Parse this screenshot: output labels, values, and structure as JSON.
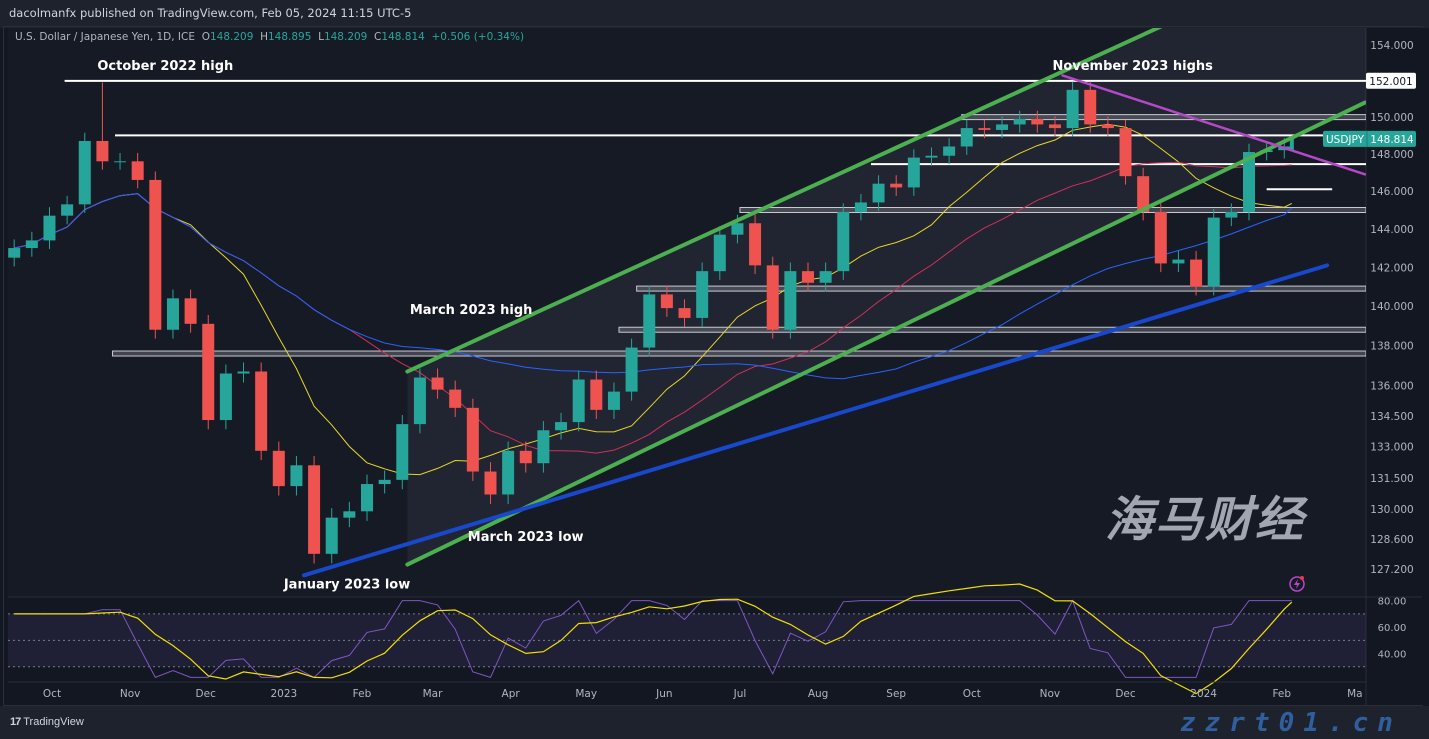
{
  "header": {
    "published": "dacolmanfx published on TradingView.com, Feb 05, 2024 11:15 UTC-5",
    "symbol_desc": "U.S. Dollar / Japanese Yen, 1D, ICE",
    "o_label": "O",
    "o": "148.209",
    "h_label": "H",
    "h": "148.895",
    "l_label": "L",
    "l": "148.209",
    "c_label": "C",
    "c": "148.814",
    "change": "+0.506 (+0.34%)"
  },
  "footer": {
    "logo_text": "TradingView",
    "logo_mark": "17"
  },
  "watermark": {
    "cn": "海马财经",
    "site": "zzrt01.cn"
  },
  "colors": {
    "up": "#26a69a",
    "down": "#ef5350",
    "channel": "#4caf50",
    "support": "#1848cc",
    "resistance": "#b548c6",
    "ma_fast": "#e8d62a",
    "ma_mid": "#d0305a",
    "ma_slow": "#2962ff",
    "rsi": "#7e57c2",
    "rsi_ma": "#f2e000",
    "background": "#131722"
  },
  "chart_data": {
    "type": "candlestick",
    "symbol": "USDJPY",
    "last_price": "148.814",
    "last_price_color": "#26a69a",
    "y_scale": "log",
    "ylim": [
      126.5,
      155.5
    ],
    "y_ticks": [
      "154.000",
      "152.001",
      "150.000",
      "148.000",
      "146.000",
      "144.000",
      "142.000",
      "140.000",
      "138.000",
      "136.000",
      "134.500",
      "133.000",
      "131.500",
      "130.000",
      "128.600",
      "127.200"
    ],
    "x_ticks": [
      {
        "label": "Oct",
        "date": "2022-10-01"
      },
      {
        "label": "Nov",
        "date": "2022-11-01"
      },
      {
        "label": "Dec",
        "date": "2022-12-01"
      },
      {
        "label": "2023",
        "date": "2023-01-01"
      },
      {
        "label": "Feb",
        "date": "2023-02-01"
      },
      {
        "label": "Mar",
        "date": "2023-03-01"
      },
      {
        "label": "Apr",
        "date": "2023-04-01"
      },
      {
        "label": "May",
        "date": "2023-05-01"
      },
      {
        "label": "Jun",
        "date": "2023-06-01"
      },
      {
        "label": "Jul",
        "date": "2023-07-01"
      },
      {
        "label": "Aug",
        "date": "2023-08-01"
      },
      {
        "label": "Sep",
        "date": "2023-09-01"
      },
      {
        "label": "Oct",
        "date": "2023-10-01"
      },
      {
        "label": "Nov",
        "date": "2023-11-01"
      },
      {
        "label": "Dec",
        "date": "2023-12-01"
      },
      {
        "label": "2024",
        "date": "2024-01-01"
      },
      {
        "label": "Feb",
        "date": "2024-02-01"
      },
      {
        "label": "Ma",
        "date": "2024-03-01"
      }
    ],
    "x": [
      "2022-09-16",
      "2022-09-23",
      "2022-09-30",
      "2022-10-07",
      "2022-10-14",
      "2022-10-21",
      "2022-10-28",
      "2022-11-04",
      "2022-11-11",
      "2022-11-18",
      "2022-11-25",
      "2022-12-02",
      "2022-12-09",
      "2022-12-16",
      "2022-12-23",
      "2022-12-30",
      "2023-01-06",
      "2023-01-13",
      "2023-01-20",
      "2023-01-27",
      "2023-02-03",
      "2023-02-10",
      "2023-02-17",
      "2023-02-24",
      "2023-03-03",
      "2023-03-10",
      "2023-03-17",
      "2023-03-24",
      "2023-03-31",
      "2023-04-07",
      "2023-04-14",
      "2023-04-21",
      "2023-04-28",
      "2023-05-05",
      "2023-05-12",
      "2023-05-19",
      "2023-05-26",
      "2023-06-02",
      "2023-06-09",
      "2023-06-16",
      "2023-06-23",
      "2023-06-30",
      "2023-07-07",
      "2023-07-14",
      "2023-07-21",
      "2023-07-28",
      "2023-08-04",
      "2023-08-11",
      "2023-08-18",
      "2023-08-25",
      "2023-09-01",
      "2023-09-08",
      "2023-09-15",
      "2023-09-22",
      "2023-09-29",
      "2023-10-06",
      "2023-10-13",
      "2023-10-20",
      "2023-10-27",
      "2023-11-03",
      "2023-11-10",
      "2023-11-17",
      "2023-11-24",
      "2023-12-01",
      "2023-12-08",
      "2023-12-15",
      "2023-12-22",
      "2023-12-29",
      "2024-01-05",
      "2024-01-12",
      "2024-01-19",
      "2024-01-26",
      "2024-02-02",
      "2024-02-05"
    ],
    "close": [
      143.0,
      143.4,
      144.7,
      145.3,
      148.7,
      147.6,
      147.6,
      146.6,
      138.8,
      140.4,
      139.1,
      134.3,
      136.6,
      136.7,
      132.8,
      131.1,
      132.1,
      127.9,
      129.6,
      129.9,
      131.2,
      131.4,
      134.1,
      136.4,
      135.8,
      134.9,
      131.8,
      130.7,
      132.8,
      132.2,
      133.8,
      134.2,
      136.3,
      134.8,
      135.7,
      137.9,
      140.6,
      139.9,
      139.4,
      141.8,
      143.7,
      144.3,
      142.1,
      138.8,
      141.8,
      141.2,
      141.8,
      144.9,
      145.4,
      146.4,
      146.2,
      147.8,
      147.9,
      148.4,
      149.4,
      149.3,
      149.6,
      149.9,
      149.6,
      149.4,
      151.5,
      149.6,
      149.4,
      146.8,
      144.9,
      142.2,
      142.4,
      141.0,
      144.6,
      144.9,
      148.1,
      148.2,
      148.4,
      148.814
    ],
    "moving_averages": [
      {
        "period": 50,
        "color": "#e8d62a"
      },
      {
        "period": 100,
        "color": "#d0305a"
      },
      {
        "period": 200,
        "color": "#2962ff"
      }
    ],
    "horizontal_levels": [
      {
        "price": 152.0,
        "from": "2022-10-06",
        "style": "line",
        "price_label": "152.001"
      },
      {
        "price": 149.0,
        "from": "2022-10-26",
        "style": "line"
      },
      {
        "price": 150.0,
        "from": "2023-09-27",
        "style": "band"
      },
      {
        "price": 147.45,
        "from": "2023-08-22",
        "style": "line"
      },
      {
        "price": 146.1,
        "from": "2024-01-26",
        "to": "2024-02-21",
        "style": "line"
      },
      {
        "price": 145.0,
        "from": "2023-07-01",
        "style": "band"
      },
      {
        "price": 140.9,
        "from": "2023-05-21",
        "style": "band"
      },
      {
        "price": 138.8,
        "from": "2023-05-14",
        "style": "band"
      },
      {
        "price": 137.6,
        "from": "2022-10-25",
        "style": "band"
      }
    ],
    "trendlines": [
      {
        "name": "channel-upper",
        "from": [
          "2023-02-19",
          136.7
        ],
        "to": [
          "2023-12-19",
          155.3
        ],
        "color": "#4caf50"
      },
      {
        "name": "channel-lower",
        "from": [
          "2023-02-19",
          127.4
        ],
        "to": [
          "2024-03-05",
          150.8
        ],
        "color": "#4caf50"
      },
      {
        "name": "support",
        "from": [
          "2023-01-09",
          126.9
        ],
        "to": [
          "2024-02-19",
          142.1
        ],
        "color": "#1848cc"
      },
      {
        "name": "resistance",
        "from": [
          "2023-11-06",
          152.3
        ],
        "to": [
          "2024-03-05",
          146.9
        ],
        "color": "#b548c6"
      }
    ],
    "annotations": [
      {
        "text": "October 2022 high",
        "date": "2022-10-19",
        "price": 152.6
      },
      {
        "text": "November 2023 highs",
        "date": "2023-11-02",
        "price": 152.6
      },
      {
        "text": "March 2023 high",
        "date": "2023-02-20",
        "price": 139.6
      },
      {
        "text": "March 2023 low",
        "date": "2023-03-15",
        "price": 128.5
      },
      {
        "text": "January 2023 low",
        "date": "2023-01-01",
        "price": 126.3
      }
    ],
    "rsi": {
      "y_ticks": [
        "80.00",
        "60.00",
        "40.00"
      ],
      "levels": [
        70,
        50,
        30
      ],
      "ylim": [
        20,
        82
      ]
    }
  }
}
